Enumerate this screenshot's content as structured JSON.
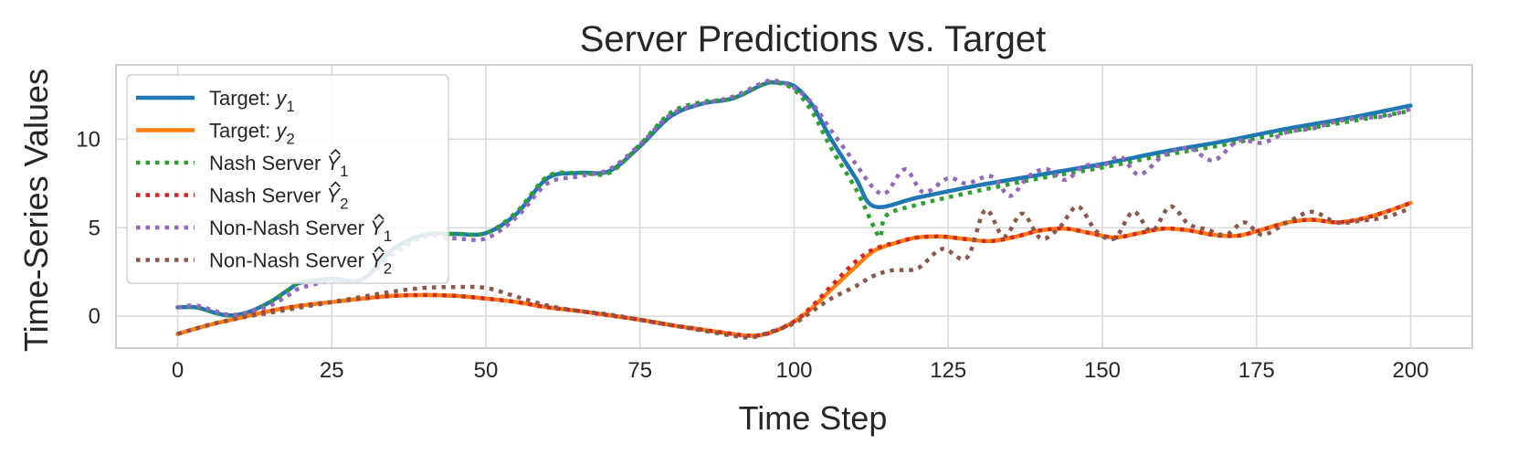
{
  "chart_data": {
    "type": "line",
    "title": "Server Predictions vs. Target",
    "xlabel": "Time Step",
    "ylabel": "Time-Series Values",
    "xlim": [
      -10,
      210
    ],
    "ylim": [
      -1.8,
      14.2
    ],
    "xticks": [
      0,
      25,
      50,
      75,
      100,
      125,
      150,
      175,
      200
    ],
    "yticks": [
      0,
      5,
      10
    ],
    "grid": true,
    "legend_position": "upper-left",
    "series": [
      {
        "name": "Target: y1",
        "legend_base": "Target: ",
        "legend_sym": "y",
        "legend_sub": "1",
        "legend_hat": false,
        "color": "#1f77b4",
        "style": "solid",
        "x": [
          0,
          3,
          6,
          8,
          10,
          12,
          15,
          18,
          20,
          25,
          30,
          35,
          40,
          45,
          50,
          55,
          60,
          65,
          70,
          75,
          80,
          85,
          90,
          95,
          97,
          100,
          103,
          106,
          110,
          113,
          120,
          130,
          140,
          150,
          160,
          170,
          180,
          190,
          200
        ],
        "y": [
          0.5,
          0.5,
          0.2,
          0.05,
          0.1,
          0.3,
          0.8,
          1.5,
          1.9,
          2.1,
          2.1,
          3.8,
          4.6,
          4.65,
          4.7,
          5.8,
          7.8,
          8.1,
          8.2,
          9.6,
          11.3,
          12.0,
          12.3,
          13.1,
          13.2,
          13.0,
          11.9,
          10.0,
          7.8,
          6.2,
          6.7,
          7.4,
          8.0,
          8.6,
          9.3,
          9.9,
          10.6,
          11.2,
          11.9
        ]
      },
      {
        "name": "Target: y2",
        "legend_base": "Target: ",
        "legend_sym": "y",
        "legend_sub": "2",
        "legend_hat": false,
        "color": "#ff7f0e",
        "style": "solid",
        "x": [
          0,
          5,
          10,
          15,
          20,
          25,
          30,
          35,
          40,
          45,
          50,
          55,
          60,
          65,
          70,
          75,
          80,
          85,
          90,
          93,
          96,
          100,
          103,
          106,
          110,
          113,
          117,
          120,
          124,
          128,
          132,
          136,
          140,
          144,
          148,
          152,
          156,
          160,
          164,
          168,
          172,
          176,
          180,
          184,
          188,
          192,
          196,
          200
        ],
        "y": [
          -1.0,
          -0.5,
          -0.1,
          0.3,
          0.6,
          0.8,
          1.0,
          1.15,
          1.2,
          1.15,
          1.0,
          0.8,
          0.5,
          0.3,
          0.05,
          -0.2,
          -0.5,
          -0.75,
          -1.0,
          -1.1,
          -0.95,
          -0.3,
          0.5,
          1.5,
          2.8,
          3.7,
          4.2,
          4.45,
          4.5,
          4.35,
          4.25,
          4.5,
          4.85,
          4.95,
          4.7,
          4.45,
          4.7,
          4.95,
          4.85,
          4.6,
          4.55,
          4.9,
          5.3,
          5.45,
          5.3,
          5.5,
          5.9,
          6.4
        ]
      },
      {
        "name": "Nash Server Ŷ1",
        "legend_base": "Nash Server ",
        "legend_sym": "Y",
        "legend_sub": "1",
        "legend_hat": true,
        "color": "#2ca02c",
        "style": "dotted",
        "x": [
          0,
          3,
          6,
          8,
          10,
          12,
          15,
          18,
          20,
          25,
          30,
          35,
          40,
          45,
          50,
          55,
          60,
          65,
          70,
          75,
          80,
          85,
          90,
          95,
          97,
          100,
          103,
          106,
          110,
          113,
          114,
          115,
          120,
          130,
          140,
          150,
          160,
          170,
          180,
          190,
          200
        ],
        "y": [
          0.5,
          0.5,
          0.2,
          0.05,
          0.1,
          0.3,
          0.8,
          1.5,
          1.9,
          2.1,
          2.1,
          3.7,
          4.6,
          4.65,
          4.7,
          5.9,
          7.9,
          8.1,
          8.1,
          9.7,
          11.5,
          12.1,
          12.3,
          13.1,
          13.2,
          12.8,
          11.5,
          9.5,
          7.2,
          5.0,
          4.5,
          5.7,
          6.3,
          7.1,
          7.8,
          8.4,
          9.1,
          9.7,
          10.4,
          11.0,
          11.6
        ]
      },
      {
        "name": "Nash Server Ŷ2",
        "legend_base": "Nash Server ",
        "legend_sym": "Y",
        "legend_sub": "2",
        "legend_hat": true,
        "color": "#d62728",
        "style": "dotted",
        "x": [
          0,
          5,
          10,
          15,
          20,
          25,
          30,
          35,
          40,
          45,
          50,
          55,
          60,
          65,
          70,
          75,
          80,
          85,
          90,
          93,
          96,
          100,
          103,
          106,
          110,
          113,
          117,
          120,
          124,
          128,
          132,
          136,
          140,
          144,
          148,
          152,
          156,
          160,
          164,
          168,
          172,
          176,
          180,
          184,
          188,
          192,
          196,
          200
        ],
        "y": [
          -1.0,
          -0.5,
          -0.1,
          0.3,
          0.6,
          0.8,
          1.0,
          1.15,
          1.2,
          1.15,
          1.0,
          0.8,
          0.5,
          0.3,
          0.05,
          -0.2,
          -0.5,
          -0.75,
          -1.0,
          -1.1,
          -0.95,
          -0.3,
          0.6,
          1.7,
          3.1,
          3.8,
          4.2,
          4.45,
          4.5,
          4.35,
          4.25,
          4.5,
          4.85,
          4.95,
          4.7,
          4.45,
          4.7,
          4.95,
          4.85,
          4.6,
          4.55,
          4.9,
          5.3,
          5.45,
          5.3,
          5.5,
          5.9,
          6.4
        ]
      },
      {
        "name": "Non-Nash Server Ŷ1",
        "legend_base": "Non-Nash Server ",
        "legend_sym": "Y",
        "legend_sub": "1",
        "legend_hat": true,
        "color": "#9467bd",
        "style": "dotted",
        "x": [
          0,
          3,
          6,
          8,
          10,
          12,
          15,
          18,
          20,
          25,
          30,
          35,
          40,
          45,
          50,
          55,
          60,
          65,
          70,
          75,
          80,
          85,
          90,
          95,
          97,
          100,
          103,
          106,
          110,
          113,
          115,
          118,
          121,
          125,
          128,
          132,
          135,
          138,
          141,
          144,
          147,
          150,
          153,
          156,
          160,
          164,
          168,
          172,
          176,
          180,
          184,
          188,
          192,
          196,
          200
        ],
        "y": [
          0.5,
          0.6,
          0.3,
          0.1,
          0.1,
          0.3,
          0.6,
          1.2,
          1.6,
          2.0,
          2.1,
          3.5,
          4.5,
          4.4,
          4.4,
          5.6,
          7.5,
          7.9,
          8.3,
          9.7,
          11.4,
          12.0,
          12.4,
          13.2,
          13.3,
          12.9,
          12.0,
          10.5,
          8.6,
          7.2,
          7.0,
          8.3,
          7.0,
          7.8,
          7.5,
          7.9,
          6.8,
          7.9,
          8.3,
          7.7,
          8.5,
          8.5,
          9.0,
          8.0,
          9.1,
          9.5,
          8.8,
          9.9,
          9.8,
          10.4,
          10.6,
          11.0,
          11.2,
          11.3,
          11.7
        ]
      },
      {
        "name": "Non-Nash Server Ŷ2",
        "legend_base": "Non-Nash Server ",
        "legend_sym": "Y",
        "legend_sub": "2",
        "legend_hat": true,
        "color": "#8c564b",
        "style": "dotted",
        "x": [
          0,
          5,
          10,
          15,
          20,
          25,
          30,
          35,
          40,
          45,
          50,
          55,
          60,
          65,
          70,
          75,
          80,
          85,
          90,
          93,
          96,
          100,
          103,
          106,
          110,
          113,
          116,
          120,
          124,
          128,
          131,
          134,
          137,
          140,
          143,
          146,
          149,
          152,
          155,
          158,
          161,
          164,
          167,
          170,
          173,
          176,
          180,
          184,
          188,
          192,
          196,
          200
        ],
        "y": [
          -1.0,
          -0.5,
          -0.1,
          0.2,
          0.5,
          0.8,
          1.1,
          1.4,
          1.6,
          1.65,
          1.6,
          1.1,
          0.6,
          0.3,
          0.1,
          -0.2,
          -0.5,
          -0.8,
          -1.1,
          -1.2,
          -0.9,
          -0.4,
          0.3,
          1.0,
          1.7,
          2.3,
          2.6,
          2.7,
          3.8,
          3.3,
          6.0,
          4.5,
          5.8,
          4.4,
          5.0,
          6.2,
          4.8,
          4.4,
          5.9,
          4.8,
          6.2,
          5.2,
          4.9,
          4.6,
          5.3,
          4.6,
          5.3,
          5.9,
          5.3,
          5.4,
          5.6,
          6.1
        ]
      }
    ]
  }
}
